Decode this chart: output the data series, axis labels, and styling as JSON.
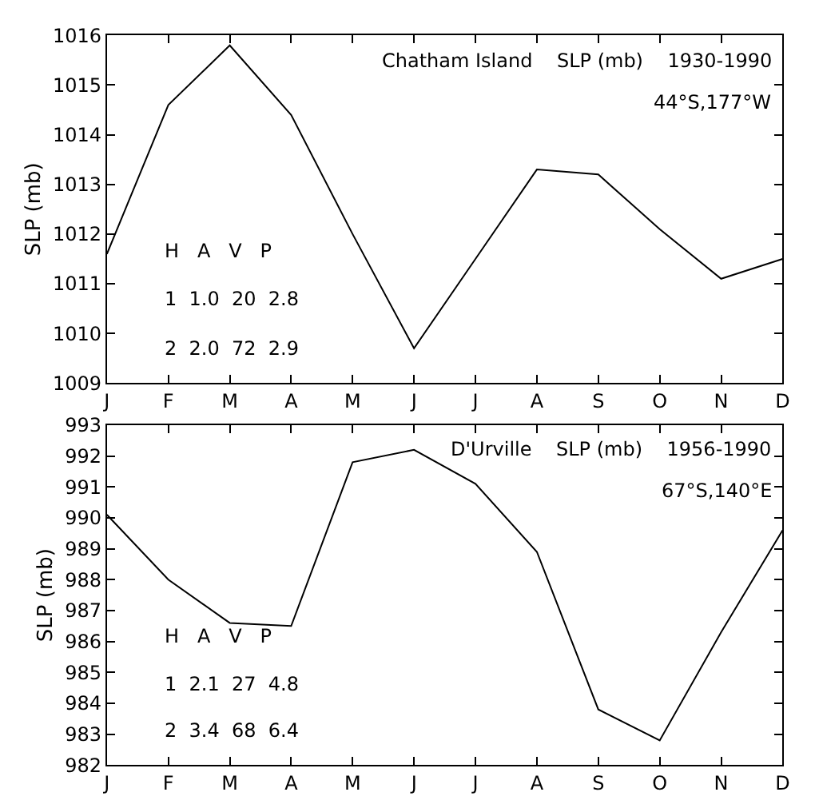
{
  "chart_data": [
    {
      "type": "line",
      "title": "Chatham Island    SLP (mb)    1930-1990",
      "subtitle": "44°S,177°W",
      "ylabel": "SLP (mb)",
      "categories": [
        "J",
        "F",
        "M",
        "A",
        "M",
        "J",
        "J",
        "A",
        "S",
        "O",
        "N",
        "D"
      ],
      "values": [
        1011.6,
        1014.6,
        1015.8,
        1014.4,
        1012.0,
        1009.7,
        1011.5,
        1013.3,
        1013.2,
        1012.1,
        1011.1,
        1011.5
      ],
      "color": "#000000",
      "ylim": [
        1009,
        1016
      ],
      "yticks": [
        1009,
        1010,
        1011,
        1012,
        1013,
        1014,
        1015,
        1016
      ],
      "annotations": [
        "H   A   V   P",
        "1  1.0  20  2.8",
        "2  2.0  72  2.9"
      ]
    },
    {
      "type": "line",
      "title": "D'Urville    SLP (mb)    1956-1990",
      "subtitle": "67°S,140°E",
      "ylabel": "SLP (mb)",
      "categories": [
        "J",
        "F",
        "M",
        "A",
        "M",
        "J",
        "J",
        "A",
        "S",
        "O",
        "N",
        "D"
      ],
      "values": [
        990.1,
        988.0,
        986.6,
        986.5,
        991.8,
        992.2,
        991.1,
        988.9,
        983.8,
        982.8,
        986.3,
        989.6
      ],
      "color": "#000000",
      "ylim": [
        982,
        993
      ],
      "yticks": [
        982,
        983,
        984,
        985,
        986,
        987,
        988,
        989,
        990,
        991,
        992,
        993
      ],
      "annotations": [
        "H   A   V   P",
        "1  2.1  27  4.8",
        "2  3.4  68  6.4"
      ]
    }
  ]
}
